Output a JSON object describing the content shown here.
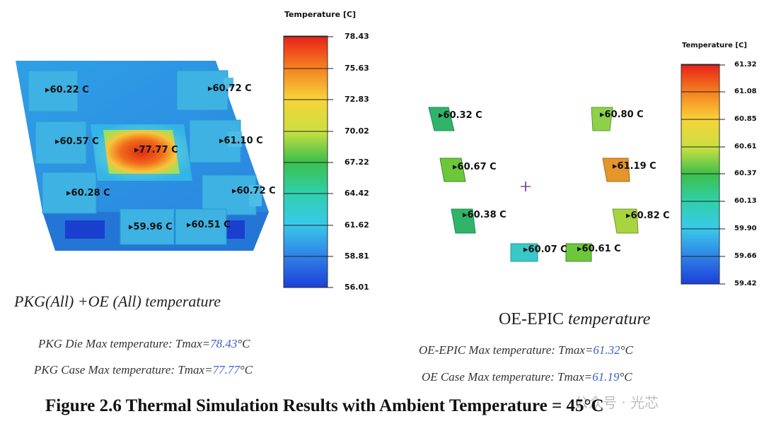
{
  "left_panel": {
    "colorbar": {
      "title": "Temperature [C]",
      "ticks": [
        "78.43",
        "75.63",
        "72.83",
        "70.02",
        "67.22",
        "64.42",
        "61.62",
        "58.81",
        "56.01"
      ]
    },
    "labels": [
      "60.22 C",
      "60.72 C",
      "60.57 C",
      "77.77 C",
      "61.10 C",
      "60.28 C",
      "60.72 C",
      "59.96 C",
      "60.51 C"
    ],
    "caption": "PKG(All) +OE (All) temperature",
    "line1": {
      "prefix": "PKG Die Max temperature: Tmax=",
      "value": "78.43",
      "unit": "°C"
    },
    "line2": {
      "prefix": "PKG Case Max temperature: Tmax=",
      "value": "77.77",
      "unit": "°C"
    }
  },
  "right_panel": {
    "colorbar": {
      "title": "Temperature [C]",
      "ticks": [
        "61.32",
        "61.08",
        "60.85",
        "60.61",
        "60.37",
        "60.13",
        "59.90",
        "59.66",
        "59.42"
      ]
    },
    "labels": [
      "60.32 C",
      "60.80 C",
      "60.67 C",
      "61.19 C",
      "60.38 C",
      "60.82 C",
      "60.07 C",
      "60.61 C"
    ],
    "caption_normal": "OE-EPIC",
    "caption_italic": "temperature",
    "line1": {
      "prefix": "OE-EPIC Max temperature: Tmax=",
      "value": "61.32",
      "unit": "°C"
    },
    "line2": {
      "prefix": "OE Case Max temperature: Tmax=",
      "value": "61.19",
      "unit": "°C"
    }
  },
  "figure_caption": "Figure 2.6 Thermal Simulation Results with Ambient Temperature = 45°C",
  "watermark": "公众号 · 光芯",
  "colors": {
    "highlight": "#3d5fd1",
    "hot": "#e8351a",
    "cool_blue": "#1f6fe0",
    "cyan": "#2fc6d8",
    "green": "#3fbf4a"
  }
}
